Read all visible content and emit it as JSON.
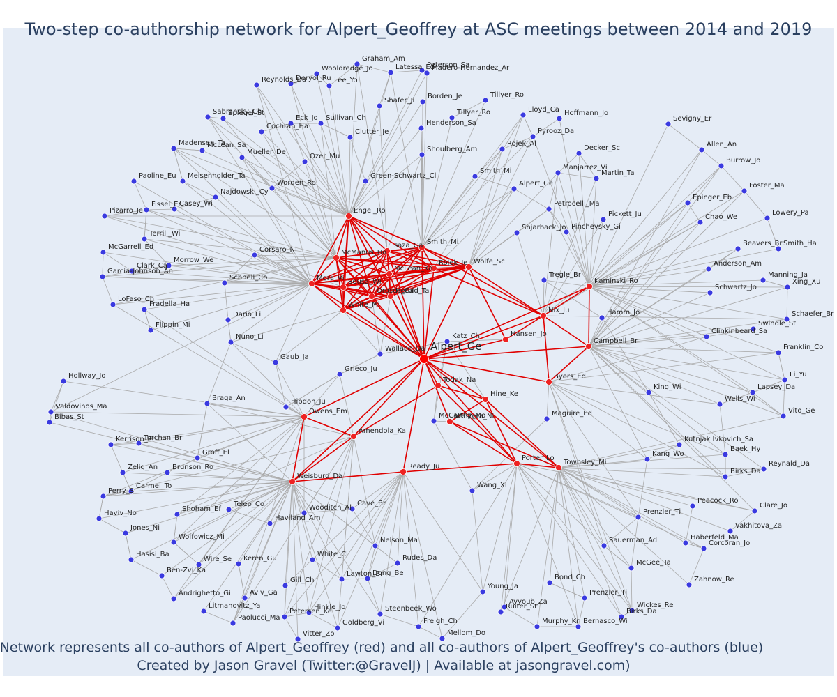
{
  "title": "Two-step co-authorship network for Alpert_Geoffrey at ASC meetings between 2014 and 2019",
  "caption_line1": "Network represents all co-authors of Alpert_Geoffrey (red) and all co-authors of Alpert_Geoffrey's co-authors (blue)",
  "caption_line2": "Created by Jason Gravel (Twitter:@GravelJ) | Available at jasongravel.com)",
  "colors": {
    "focal": "#ff0000",
    "coauthor": "#ee2222",
    "second": "#3a3ae0",
    "red_edge": "#e00000",
    "gray_edge": "#a9a9a9",
    "background": "#e5ecf6"
  },
  "focal": "Alpert_Ge",
  "red_nodes": [
    "Engel_Ro",
    "Isaza_Ga",
    "McManus_Ha",
    "Smith_Mi",
    "Rojek_Je",
    "Wolfe_Sc",
    "McLean_Ka",
    "Mora_Vi",
    "Sousa_Wi",
    "Orosco_Ca",
    "Herold_Ta",
    "White_Mi",
    "Hansen_Jo",
    "Nix_Ju",
    "Kaminski_Ro",
    "Campbell_Br",
    "Byers_Ed",
    "Hine_Ke",
    "Westera_Ni",
    "Todak_Na",
    "Owens_Em",
    "Amendola_Ka",
    "Weisburd_Da",
    "Ready_Ju",
    "Porter_Lo",
    "Townsley_Mi"
  ],
  "blue_nodes": [
    "Graham_Am",
    "Latessa_Ed",
    "Wooldredge_Jo",
    "Peterson_Sa",
    "Madero-Hernandez_Ar",
    "Deryol_Ru",
    "Lee_Yo",
    "Reynolds_Da",
    "Shafer_Ji",
    "Borden_Je",
    "Tillyer_Ro",
    "Sabransky_Ch",
    "Spiegel_St",
    "Eck_Jo",
    "Sullivan_Ch",
    "Tillyer_Ro",
    "Lloyd_Ca",
    "Hoffmann_Jo",
    "Cochran_Ha",
    "Henderson_Sa",
    "Sevigny_Er",
    "Clutter_Je",
    "Pyrooz_Da",
    "Madensen_Ta",
    "McLean_Sa",
    "Rojek_Al",
    "Mueller_De",
    "Decker_Sc",
    "Ozer_Mu",
    "Allen_An",
    "Shoulberg_Am",
    "Paoline_Eu",
    "Meisenholder_Ta",
    "Manjarrez_Vi",
    "Burrow_Jo",
    "Smith_Mi",
    "Martin_Ta",
    "Green-Schwartz_Cl",
    "Worden_Ro",
    "Alpert_Ge",
    "Foster_Ma",
    "Fissel_Er",
    "Najdowski_Cy",
    "Epinger_Eb",
    "Casey_Wi",
    "Pizarro_Je",
    "Petrocelli_Ma",
    "Lowery_Pa",
    "Pickett_Ju",
    "Terrill_Wi",
    "Chao_We",
    "Shjarback_Jo",
    "Pinchevsky_Gi",
    "McGarrell_Ed",
    "Beavers_Br",
    "Smith_Ha",
    "Clark_Ca",
    "Morrow_We",
    "Corsaro_Ni",
    "Anderson_Am",
    "Garcia-Johnson_An",
    "Manning_Ja",
    "Tregle_Br",
    "Schnell_Co",
    "Xing_Xu",
    "LoFaso_Ch",
    "Schwartz_Jo",
    "Fradella_Ha",
    "Dario_Li",
    "Hamm_Jo",
    "Schaefer_Br",
    "Swindle_St",
    "Flippin_Mi",
    "Katz_Ch",
    "Clinkinbeard_Sa",
    "Nuno_Li",
    "Franklin_Co",
    "Wallace_Da",
    "Gaub_Ja",
    "Grieco_Ju",
    "Li_Yu",
    "Hollway_Jo",
    "King_Wi",
    "Lapsey_Da",
    "Maguire_Ed",
    "Wells_Wi",
    "Valdovinos_Ma",
    "Braga_An",
    "Hibdon_Ju",
    "Vito_Ge",
    "Bibas_St",
    "McCarthy_Mo",
    "Kerrison_Er",
    "Turchan_Br",
    "Kutnjak Ivkovich_Sa",
    "Baek_Hy",
    "Groff_El",
    "Kang_Wo",
    "Reynald_Da",
    "Zelig_An",
    "Brunson_Ro",
    "Birks_Da",
    "Perry_Si",
    "Carmel_To",
    "Wang_Xi",
    "Peacock_Ro",
    "Clare_Jo",
    "Wooditch_Al",
    "Cave_Br",
    "Prenzler_Ti",
    "Haviv_No",
    "Shoham_Ef",
    "Telep_Co",
    "Haviland_Am",
    "Vakhitova_Za",
    "Jones_Ni",
    "Wolfowicz_Mi",
    "Nelson_Ma",
    "Sauerman_Ad",
    "Haberfeld_Ma",
    "Corcoran_Jo",
    "Hasisi_Ba",
    "White_Cl",
    "Wire_Se",
    "Keren_Gu",
    "Rudes_Da",
    "McGee_Ta",
    "Ben-Zvi_Ka",
    "Lawton_Br",
    "Dong_Be",
    "Zahnow_Re",
    "Bond_Ch",
    "Gill_Ch",
    "Aviv_Ga",
    "Andrighetto_Gi",
    "Prenzler_Ti",
    "Birks_Da",
    "Young_Ja",
    "Litmanovitz_Ya",
    "Hinkle_Jo",
    "Steenbeek_Wo",
    "Wickes_Re",
    "Ruiter_St",
    "Petersen_Ke",
    "Paolucci_Ma",
    "Freigh_Ch",
    "Ayyoub_Za",
    "Bernasco_Wi",
    "Murphy_Kr",
    "Goldberg_Vi",
    "Vitter_Zo",
    "Mellom_Do"
  ]
}
